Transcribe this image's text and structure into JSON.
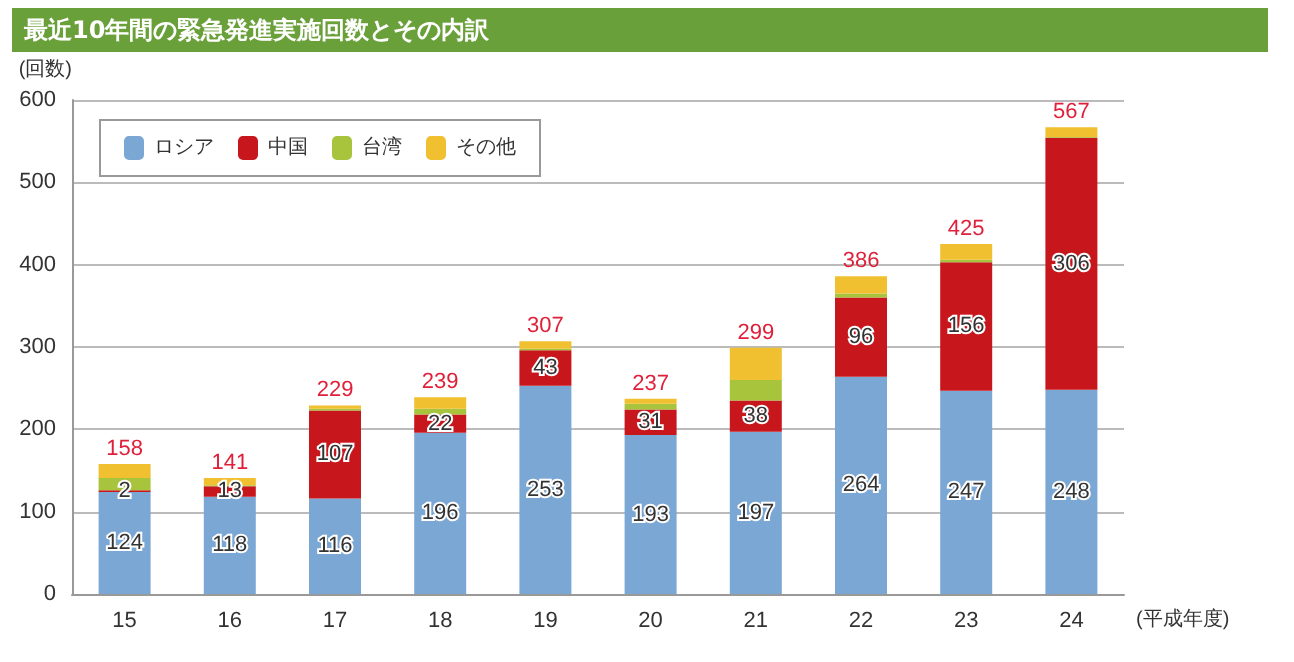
{
  "chart_data": {
    "type": "bar",
    "title": "最近10年間の緊急発進実施回数とその内訳",
    "ylabel": "(回数)",
    "xlabel": "(平成年度)",
    "categories": [
      "15",
      "16",
      "17",
      "18",
      "19",
      "20",
      "21",
      "22",
      "23",
      "24"
    ],
    "stacked": true,
    "series": [
      {
        "name": "ロシア",
        "color": "#7ba7d4",
        "values": [
          124,
          118,
          116,
          196,
          253,
          193,
          197,
          264,
          247,
          248
        ],
        "value_labels": [
          "124",
          "118",
          "116",
          "196",
          "253",
          "193",
          "197",
          "264",
          "247",
          "248"
        ]
      },
      {
        "name": "中国",
        "color": "#c8161d",
        "values": [
          2,
          13,
          107,
          22,
          43,
          31,
          38,
          96,
          156,
          306
        ],
        "value_labels": [
          "2",
          "13",
          "107",
          "22",
          "43",
          "31",
          "38",
          "96",
          "156",
          "306"
        ]
      },
      {
        "name": "台湾",
        "color": "#a8c43c",
        "values": [
          15,
          1,
          2,
          7,
          2,
          7,
          25,
          5,
          3,
          1
        ]
      },
      {
        "name": "その他",
        "color": "#f0c030",
        "values": [
          17,
          9,
          4,
          14,
          9,
          6,
          39,
          21,
          19,
          12
        ]
      }
    ],
    "totals": [
      "158",
      "141",
      "229",
      "239",
      "307",
      "237",
      "299",
      "386",
      "425",
      "567"
    ],
    "ylim": [
      0,
      600
    ],
    "yticks": [
      0,
      100,
      200,
      300,
      400,
      500,
      600
    ],
    "grid": "y",
    "legend": "top left"
  }
}
